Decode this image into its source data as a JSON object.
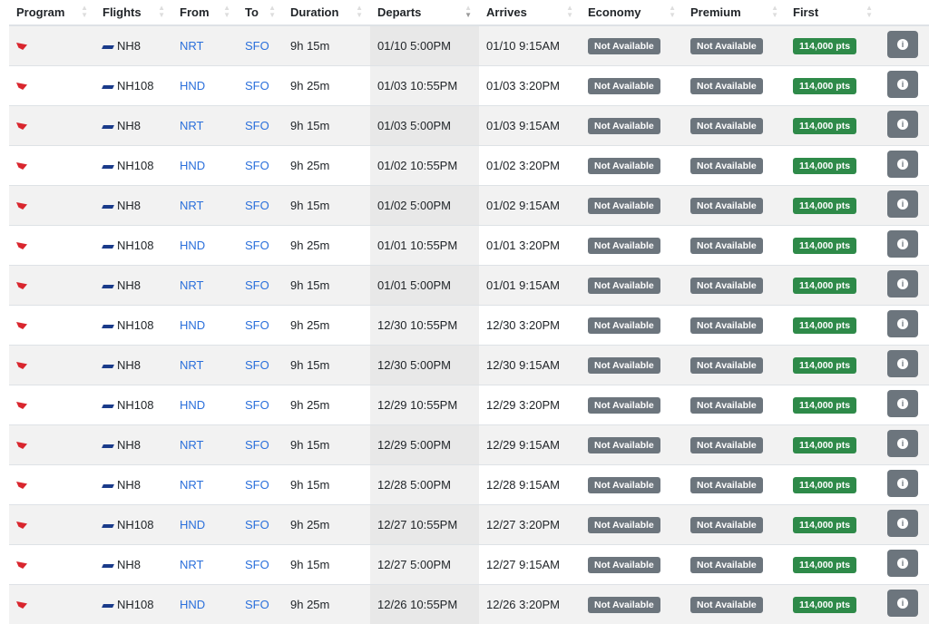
{
  "columns": [
    "Program",
    "Flights",
    "From",
    "To",
    "Duration",
    "Departs",
    "Arrives",
    "Economy",
    "Premium",
    "First",
    ""
  ],
  "sorted_column": "Departs",
  "colors": {
    "not_available": "#6c757d",
    "points": "#2e8a49",
    "link": "#2a6fdb"
  },
  "rows": [
    {
      "flight": "NH8",
      "from": "NRT",
      "to": "SFO",
      "duration": "9h 15m",
      "departs": "01/10 5:00PM",
      "arrives": "01/10 9:15AM",
      "economy": "Not Available",
      "premium": "Not Available",
      "first": "114,000 pts"
    },
    {
      "flight": "NH108",
      "from": "HND",
      "to": "SFO",
      "duration": "9h 25m",
      "departs": "01/03 10:55PM",
      "arrives": "01/03 3:20PM",
      "economy": "Not Available",
      "premium": "Not Available",
      "first": "114,000 pts"
    },
    {
      "flight": "NH8",
      "from": "NRT",
      "to": "SFO",
      "duration": "9h 15m",
      "departs": "01/03 5:00PM",
      "arrives": "01/03 9:15AM",
      "economy": "Not Available",
      "premium": "Not Available",
      "first": "114,000 pts"
    },
    {
      "flight": "NH108",
      "from": "HND",
      "to": "SFO",
      "duration": "9h 25m",
      "departs": "01/02 10:55PM",
      "arrives": "01/02 3:20PM",
      "economy": "Not Available",
      "premium": "Not Available",
      "first": "114,000 pts"
    },
    {
      "flight": "NH8",
      "from": "NRT",
      "to": "SFO",
      "duration": "9h 15m",
      "departs": "01/02 5:00PM",
      "arrives": "01/02 9:15AM",
      "economy": "Not Available",
      "premium": "Not Available",
      "first": "114,000 pts"
    },
    {
      "flight": "NH108",
      "from": "HND",
      "to": "SFO",
      "duration": "9h 25m",
      "departs": "01/01 10:55PM",
      "arrives": "01/01 3:20PM",
      "economy": "Not Available",
      "premium": "Not Available",
      "first": "114,000 pts"
    },
    {
      "flight": "NH8",
      "from": "NRT",
      "to": "SFO",
      "duration": "9h 15m",
      "departs": "01/01 5:00PM",
      "arrives": "01/01 9:15AM",
      "economy": "Not Available",
      "premium": "Not Available",
      "first": "114,000 pts"
    },
    {
      "flight": "NH108",
      "from": "HND",
      "to": "SFO",
      "duration": "9h 25m",
      "departs": "12/30 10:55PM",
      "arrives": "12/30 3:20PM",
      "economy": "Not Available",
      "premium": "Not Available",
      "first": "114,000 pts"
    },
    {
      "flight": "NH8",
      "from": "NRT",
      "to": "SFO",
      "duration": "9h 15m",
      "departs": "12/30 5:00PM",
      "arrives": "12/30 9:15AM",
      "economy": "Not Available",
      "premium": "Not Available",
      "first": "114,000 pts"
    },
    {
      "flight": "NH108",
      "from": "HND",
      "to": "SFO",
      "duration": "9h 25m",
      "departs": "12/29 10:55PM",
      "arrives": "12/29 3:20PM",
      "economy": "Not Available",
      "premium": "Not Available",
      "first": "114,000 pts"
    },
    {
      "flight": "NH8",
      "from": "NRT",
      "to": "SFO",
      "duration": "9h 15m",
      "departs": "12/29 5:00PM",
      "arrives": "12/29 9:15AM",
      "economy": "Not Available",
      "premium": "Not Available",
      "first": "114,000 pts"
    },
    {
      "flight": "NH8",
      "from": "NRT",
      "to": "SFO",
      "duration": "9h 15m",
      "departs": "12/28 5:00PM",
      "arrives": "12/28 9:15AM",
      "economy": "Not Available",
      "premium": "Not Available",
      "first": "114,000 pts"
    },
    {
      "flight": "NH108",
      "from": "HND",
      "to": "SFO",
      "duration": "9h 25m",
      "departs": "12/27 10:55PM",
      "arrives": "12/27 3:20PM",
      "economy": "Not Available",
      "premium": "Not Available",
      "first": "114,000 pts"
    },
    {
      "flight": "NH8",
      "from": "NRT",
      "to": "SFO",
      "duration": "9h 15m",
      "departs": "12/27 5:00PM",
      "arrives": "12/27 9:15AM",
      "economy": "Not Available",
      "premium": "Not Available",
      "first": "114,000 pts"
    },
    {
      "flight": "NH108",
      "from": "HND",
      "to": "SFO",
      "duration": "9h 25m",
      "departs": "12/26 10:55PM",
      "arrives": "12/26 3:20PM",
      "economy": "Not Available",
      "premium": "Not Available",
      "first": "114,000 pts"
    }
  ]
}
